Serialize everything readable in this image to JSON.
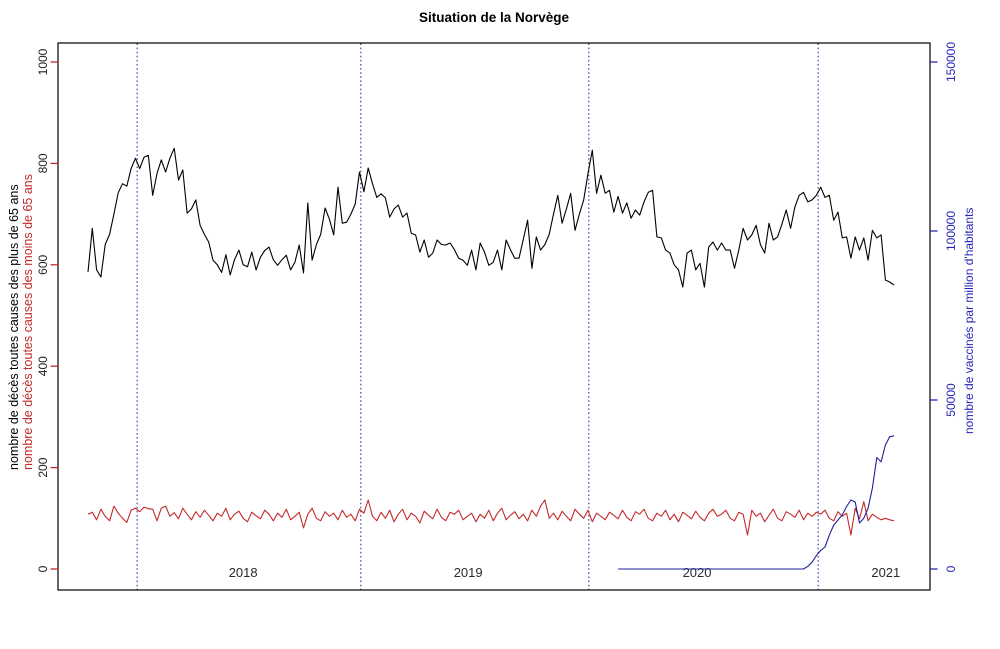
{
  "title": "Situation de la Norvège",
  "axis_labels": {
    "left_over65": "nombre de décès toutes causes des plus de 65 ans",
    "left_under65": "nombre de décès toutes causes des moins de 65 ans",
    "right_vaccinated": "nombre de vaccinés par million d'habitants"
  },
  "colors": {
    "over65_line": "#000000",
    "under65_line": "#c32b2b",
    "vaccinated_line": "#1f1f9c",
    "year_line": "#1c1c8a",
    "left_tick": "#c32b2b",
    "left_tick_text": "#1f1f1f",
    "right_tick": "#2626b8",
    "right_tick_text": "#2626b8",
    "year_label_text": "#2b2b2b",
    "box": "#000000"
  },
  "chart_data": {
    "type": "line",
    "frequency": "weekly",
    "x_start_label": "2017-W41",
    "n_points": 188,
    "left_axis": {
      "ticks": [
        0,
        200,
        400,
        600,
        800,
        1000
      ],
      "lim": [
        0,
        1000
      ]
    },
    "right_axis": {
      "ticks": [
        0,
        50000,
        100000,
        150000
      ],
      "lim": [
        0,
        150000
      ]
    },
    "year_marks": {
      "labels": [
        "2018",
        "2019",
        "2020",
        "2021"
      ],
      "line_indices": [
        11.4,
        63.3,
        116.2,
        169.4
      ],
      "label_indices": [
        36,
        88.2,
        141.3,
        185.1
      ]
    },
    "series": [
      {
        "name": "deces_plus_de_65_ans",
        "axis": "left",
        "color_key": "over65_line",
        "start_index": 0,
        "values": [
          586,
          672,
          590,
          576,
          640,
          660,
          700,
          742,
          760,
          755,
          790,
          810,
          790,
          812,
          816,
          737,
          780,
          807,
          783,
          810,
          830,
          767,
          787,
          702,
          710,
          728,
          678,
          660,
          645,
          609,
          600,
          585,
          620,
          580,
          610,
          629,
          600,
          596,
          625,
          590,
          615,
          628,
          635,
          610,
          599,
          610,
          619,
          590,
          605,
          639,
          584,
          722,
          609,
          640,
          660,
          712,
          690,
          659,
          753,
          682,
          684,
          700,
          720,
          783,
          744,
          791,
          760,
          733,
          740,
          732,
          694,
          710,
          718,
          694,
          702,
          662,
          659,
          625,
          649,
          615,
          623,
          649,
          640,
          639,
          643,
          630,
          613,
          609,
          599,
          629,
          590,
          643,
          625,
          599,
          605,
          629,
          590,
          649,
          630,
          613,
          613,
          650,
          688,
          593,
          655,
          629,
          640,
          660,
          700,
          737,
          682,
          710,
          741,
          668,
          700,
          728,
          780,
          826,
          741,
          777,
          741,
          747,
          704,
          735,
          702,
          722,
          692,
          708,
          698,
          724,
          743,
          747,
          655,
          653,
          629,
          623,
          600,
          590,
          556,
          623,
          629,
          590,
          603,
          556,
          635,
          645,
          629,
          643,
          629,
          629,
          593,
          629,
          672,
          649,
          659,
          678,
          640,
          623,
          682,
          649,
          655,
          680,
          708,
          672,
          714,
          737,
          743,
          724,
          728,
          737,
          753,
          733,
          737,
          688,
          704,
          653,
          655,
          613,
          655,
          629,
          653,
          609,
          668,
          653,
          659,
          570,
          566,
          560
        ]
      },
      {
        "name": "deces_moins_de_65_ans",
        "axis": "left",
        "color_key": "under65_line",
        "start_index": 0,
        "values": [
          108,
          112,
          97,
          118,
          104,
          95,
          124,
          110,
          100,
          92,
          116,
          120,
          113,
          122,
          119,
          118,
          95,
          120,
          124,
          104,
          111,
          99,
          120,
          108,
          97,
          113,
          102,
          116,
          106,
          95,
          110,
          104,
          120,
          97,
          108,
          114,
          100,
          93,
          112,
          105,
          99,
          116,
          108,
          95,
          110,
          102,
          118,
          97,
          104,
          112,
          81,
          108,
          120,
          100,
          95,
          113,
          104,
          110,
          97,
          116,
          102,
          108,
          95,
          118,
          110,
          136,
          104,
          95,
          112,
          100,
          116,
          93,
          108,
          118,
          97,
          110,
          104,
          91,
          114,
          106,
          99,
          118,
          102,
          95,
          112,
          108,
          116,
          97,
          104,
          110,
          93,
          108,
          100,
          116,
          95,
          110,
          120,
          97,
          106,
          113,
          99,
          108,
          95,
          116,
          104,
          124,
          136,
          100,
          110,
          97,
          114,
          104,
          95,
          118,
          108,
          100,
          116,
          93,
          110,
          104,
          97,
          112,
          106,
          99,
          116,
          102,
          95,
          113,
          108,
          118,
          100,
          95,
          110,
          104,
          116,
          97,
          108,
          93,
          112,
          106,
          99,
          114,
          102,
          95,
          110,
          118,
          104,
          108,
          116,
          100,
          95,
          112,
          108,
          67,
          116,
          104,
          110,
          93,
          106,
          118,
          100,
          95,
          113,
          108,
          102,
          116,
          97,
          110,
          104,
          112,
          108,
          116,
          100,
          95,
          113,
          104,
          110,
          67,
          120,
          99,
          133,
          95,
          108,
          102,
          97,
          100,
          97,
          95
        ]
      },
      {
        "name": "vaccines_par_million",
        "axis": "right",
        "color_key": "vaccinated_line",
        "start_index": 123,
        "values": [
          0,
          0,
          0,
          0,
          0,
          0,
          0,
          0,
          0,
          0,
          0,
          0,
          0,
          0,
          0,
          0,
          0,
          0,
          0,
          0,
          0,
          0,
          0,
          0,
          0,
          0,
          0,
          0,
          0,
          0,
          0,
          0,
          0,
          0,
          0,
          0,
          0,
          0,
          0,
          0,
          0,
          0,
          0,
          0,
          800,
          2000,
          4000,
          5500,
          6500,
          10000,
          13000,
          14500,
          16000,
          18500,
          20400,
          19800,
          13600,
          15000,
          18000,
          24000,
          33000,
          31700,
          36700,
          39100,
          39400
        ]
      }
    ]
  }
}
